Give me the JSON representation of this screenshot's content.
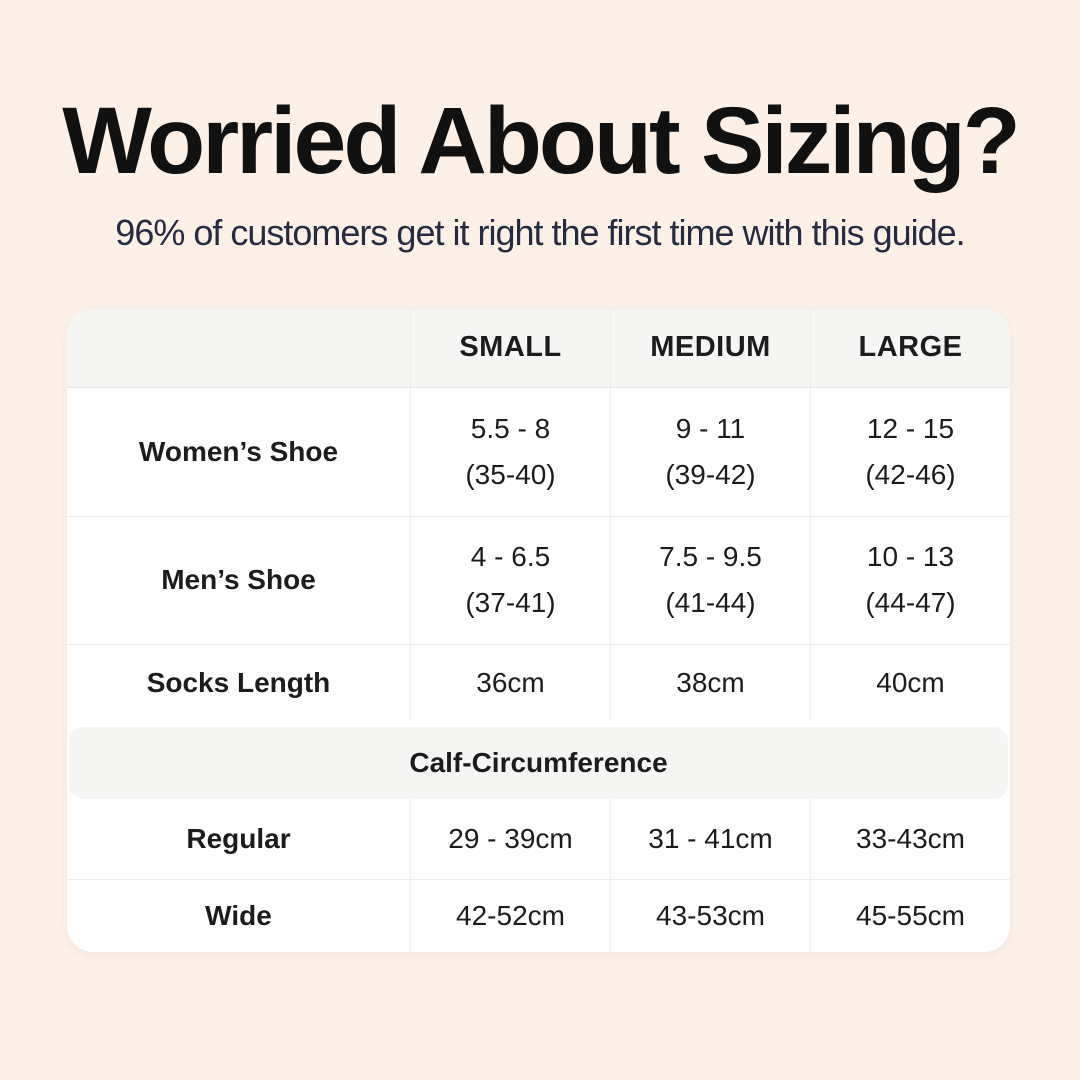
{
  "header": {
    "title": "Worried About Sizing?",
    "subtitle": "96% of customers get it right the first time with this guide."
  },
  "colors": {
    "page_bg": "#fcf0e7",
    "table_bg": "#ffffff",
    "header_band_bg": "#f5f5f4",
    "title_color": "#111111",
    "subtitle_color": "#272b42",
    "table_text_color": "#1c1c1e"
  },
  "table": {
    "columns": [
      "",
      "SMALL",
      "MEDIUM",
      "LARGE"
    ],
    "rows": [
      {
        "label": "Women’s Shoe",
        "cells": [
          [
            "5.5 - 8",
            "(35-40)"
          ],
          [
            "9 - 11",
            "(39-42)"
          ],
          [
            "12 - 15",
            "(42-46)"
          ]
        ]
      },
      {
        "label": "Men’s Shoe",
        "cells": [
          [
            "4 - 6.5",
            "(37-41)"
          ],
          [
            "7.5 - 9.5",
            "(41-44)"
          ],
          [
            "10 - 13",
            "(44-47)"
          ]
        ]
      },
      {
        "label": "Socks Length",
        "cells": [
          [
            "36cm"
          ],
          [
            "38cm"
          ],
          [
            "40cm"
          ]
        ]
      }
    ],
    "section_title": "Calf-Circumference",
    "section_rows": [
      {
        "label": "Regular",
        "cells": [
          [
            "29 - 39cm"
          ],
          [
            "31 - 41cm"
          ],
          [
            "33-43cm"
          ]
        ]
      },
      {
        "label": "Wide",
        "cells": [
          [
            "42-52cm"
          ],
          [
            "43-53cm"
          ],
          [
            "45-55cm"
          ]
        ]
      }
    ]
  }
}
